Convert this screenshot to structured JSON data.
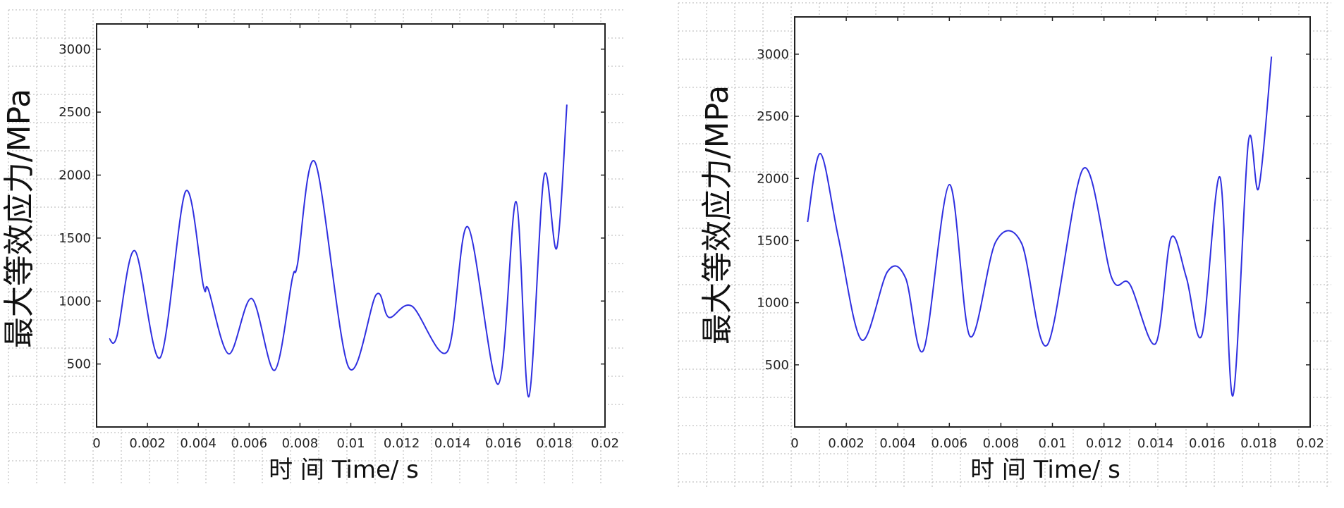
{
  "colors": {
    "line": "#2f2fe0",
    "axis": "#222222",
    "grid": "#b5b5b5",
    "background": "#ffffff"
  },
  "chart_data": [
    {
      "type": "line",
      "xlabel": "时  间  Time/ s",
      "ylabel": "最大等效应力/MPa",
      "xlim": [
        0,
        0.02
      ],
      "ylim": [
        0,
        3200
      ],
      "xticks": [
        {
          "v": 0,
          "label": "0"
        },
        {
          "v": 0.002,
          "label": "0.002"
        },
        {
          "v": 0.004,
          "label": "0.004"
        },
        {
          "v": 0.006,
          "label": "0.006"
        },
        {
          "v": 0.008,
          "label": "0.008"
        },
        {
          "v": 0.01,
          "label": "0.01"
        },
        {
          "v": 0.012,
          "label": "0.012"
        },
        {
          "v": 0.014,
          "label": "0.014"
        },
        {
          "v": 0.016,
          "label": "0.016"
        },
        {
          "v": 0.018,
          "label": "0.018"
        },
        {
          "v": 0.02,
          "label": "0.02"
        }
      ],
      "yticks": [
        {
          "v": 500,
          "label": "500"
        },
        {
          "v": 1000,
          "label": "1000"
        },
        {
          "v": 1500,
          "label": "1500"
        },
        {
          "v": 2000,
          "label": "2000"
        },
        {
          "v": 2500,
          "label": "2500"
        },
        {
          "v": 3000,
          "label": "3000"
        }
      ],
      "grid": false,
      "series": [
        {
          "x": [
            0.0005,
            0.0008,
            0.0015,
            0.0025,
            0.0035,
            0.0042,
            0.0044,
            0.0052,
            0.0061,
            0.007,
            0.0077,
            0.0079,
            0.0086,
            0.0099,
            0.011,
            0.0115,
            0.0124,
            0.0138,
            0.0146,
            0.0158,
            0.0165,
            0.017,
            0.0176,
            0.0181,
            0.0185
          ],
          "y": [
            700,
            720,
            1400,
            550,
            1870,
            1120,
            1090,
            580,
            1020,
            450,
            1180,
            1290,
            2100,
            480,
            1050,
            870,
            960,
            600,
            1590,
            340,
            1790,
            240,
            1990,
            1420,
            2560
          ]
        }
      ]
    },
    {
      "type": "line",
      "xlabel": "时  间  Time/ s",
      "ylabel": "最大等效应力/MPa",
      "xlim": [
        0,
        0.02
      ],
      "ylim": [
        0,
        3300
      ],
      "xticks": [
        {
          "v": 0,
          "label": "0"
        },
        {
          "v": 0.002,
          "label": "0.002"
        },
        {
          "v": 0.004,
          "label": "0.004"
        },
        {
          "v": 0.006,
          "label": "0.006"
        },
        {
          "v": 0.008,
          "label": "0.008"
        },
        {
          "v": 0.01,
          "label": "0.01"
        },
        {
          "v": 0.012,
          "label": "0.012"
        },
        {
          "v": 0.014,
          "label": "0.014"
        },
        {
          "v": 0.016,
          "label": "0.016"
        },
        {
          "v": 0.018,
          "label": "0.018"
        },
        {
          "v": 0.02,
          "label": "0.02"
        }
      ],
      "yticks": [
        {
          "v": 500,
          "label": "500"
        },
        {
          "v": 1000,
          "label": "1000"
        },
        {
          "v": 1500,
          "label": "1500"
        },
        {
          "v": 2000,
          "label": "2000"
        },
        {
          "v": 2500,
          "label": "2500"
        },
        {
          "v": 3000,
          "label": "3000"
        }
      ],
      "grid": false,
      "series": [
        {
          "x": [
            0.0005,
            0.001,
            0.0017,
            0.0026,
            0.0036,
            0.0043,
            0.005,
            0.006,
            0.0068,
            0.0078,
            0.0088,
            0.0098,
            0.0112,
            0.0123,
            0.013,
            0.014,
            0.0146,
            0.0152,
            0.0158,
            0.0165,
            0.017,
            0.0176,
            0.018,
            0.0185
          ],
          "y": [
            1650,
            2200,
            1520,
            700,
            1250,
            1200,
            620,
            1950,
            730,
            1490,
            1480,
            660,
            2080,
            1200,
            1150,
            670,
            1520,
            1200,
            740,
            2010,
            250,
            2290,
            1920,
            2980
          ]
        }
      ]
    }
  ]
}
